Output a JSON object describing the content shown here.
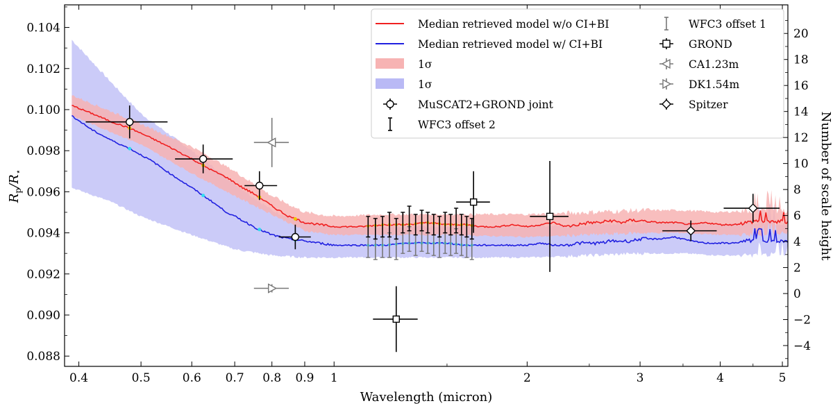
{
  "chart_data": {
    "type": "line",
    "xlabel": "Wavelength (micron)",
    "ylabel": "R_p/R_⋆",
    "ylabel_main": "R",
    "ylabel_sub": "p",
    "ylabel_mid": "/R",
    "ylabel_star": "⋆",
    "y2label": "Number of scale height",
    "xscale": "log",
    "xlim": [
      0.38,
      5.1
    ],
    "ylim": [
      0.0875,
      0.1051
    ],
    "y2lim": [
      -5.6,
      22.2
    ],
    "xticks": [
      0.4,
      0.5,
      0.6,
      0.7,
      0.8,
      0.9,
      1,
      2,
      3,
      4,
      5
    ],
    "xtick_labels": [
      "0.4",
      "0.5",
      "0.6",
      "0.7",
      "0.8",
      "0.9",
      "1",
      "2",
      "3",
      "4",
      "5"
    ],
    "yticks": [
      0.088,
      0.09,
      0.092,
      0.094,
      0.096,
      0.098,
      0.1,
      0.102,
      0.104
    ],
    "ytick_labels": [
      "0.088",
      "0.090",
      "0.092",
      "0.094",
      "0.096",
      "0.098",
      "0.100",
      "0.102",
      "0.104"
    ],
    "y2ticks": [
      -4,
      -2,
      0,
      2,
      4,
      6,
      8,
      10,
      12,
      14,
      16,
      18,
      20
    ],
    "y2tick_labels": [
      "−4",
      "−2",
      "0",
      "2",
      "4",
      "6",
      "8",
      "10",
      "12",
      "14",
      "16",
      "18",
      "20"
    ],
    "colors": {
      "model_no_ci": "#f02020",
      "model_ci": "#2020e0",
      "band_no_ci": "#f7b3b3",
      "band_ci": "#b9b9f5",
      "binned_no_ci": "#f0c800",
      "binned_ci": "#33ddee",
      "black": "#000000",
      "gray": "#777777"
    },
    "legend": {
      "col1": [
        {
          "label": "Median retrieved model w/o CI+BI"
        },
        {
          "label": "Median retrieved model w/ CI+BI"
        },
        {
          "label": "1σ"
        },
        {
          "label": "1σ"
        },
        {
          "label": "MuSCAT2+GROND joint"
        },
        {
          "label": "WFC3 offset 2"
        }
      ],
      "col2": [
        {
          "label": "WFC3 offset 1"
        },
        {
          "label": "GROND"
        },
        {
          "label": "CA1.23m"
        },
        {
          "label": "DK1.54m"
        },
        {
          "label": "Spitzer"
        }
      ]
    },
    "series": [
      {
        "name": "Median retrieved model w/o CI+BI",
        "x": [
          0.39,
          0.42,
          0.45,
          0.48,
          0.52,
          0.56,
          0.6,
          0.64,
          0.68,
          0.72,
          0.76,
          0.8,
          0.85,
          0.9,
          0.95,
          1.0,
          1.05,
          1.1,
          1.2,
          1.3,
          1.4,
          1.5,
          1.6,
          1.7,
          1.8,
          1.9,
          2.0,
          2.1,
          2.2,
          2.3,
          2.4,
          2.5,
          2.6,
          2.7,
          2.8,
          2.9,
          3.0,
          3.2,
          3.4,
          3.6,
          3.8,
          4.0,
          4.2,
          4.4,
          4.6,
          4.8,
          5.0,
          5.1
        ],
        "y": [
          0.1002,
          0.0998,
          0.0994,
          0.0991,
          0.0986,
          0.0981,
          0.0976,
          0.0971,
          0.0967,
          0.0962,
          0.0958,
          0.0953,
          0.0948,
          0.0945,
          0.0944,
          0.0943,
          0.0943,
          0.0943,
          0.0944,
          0.0944,
          0.0945,
          0.0944,
          0.0944,
          0.0943,
          0.0943,
          0.0944,
          0.0943,
          0.0944,
          0.0945,
          0.0943,
          0.0944,
          0.0945,
          0.0945,
          0.0946,
          0.0945,
          0.0946,
          0.0946,
          0.0945,
          0.0945,
          0.0944,
          0.0945,
          0.0944,
          0.0944,
          0.0945,
          0.0946,
          0.0945,
          0.0946,
          0.0945
        ]
      },
      {
        "name": "Median retrieved model w/ CI+BI",
        "x": [
          0.39,
          0.42,
          0.45,
          0.48,
          0.52,
          0.56,
          0.6,
          0.64,
          0.68,
          0.72,
          0.76,
          0.8,
          0.85,
          0.9,
          0.95,
          1.0,
          1.05,
          1.1,
          1.2,
          1.3,
          1.4,
          1.5,
          1.6,
          1.7,
          1.8,
          1.9,
          2.0,
          2.1,
          2.2,
          2.3,
          2.4,
          2.5,
          2.6,
          2.7,
          2.8,
          2.9,
          3.0,
          3.2,
          3.4,
          3.6,
          3.8,
          4.0,
          4.2,
          4.4,
          4.6,
          4.8,
          5.0,
          5.1
        ],
        "y": [
          0.0997,
          0.099,
          0.0985,
          0.0981,
          0.0975,
          0.0968,
          0.0962,
          0.0956,
          0.095,
          0.0946,
          0.0942,
          0.0939,
          0.0937,
          0.0936,
          0.0935,
          0.0934,
          0.0934,
          0.0934,
          0.0934,
          0.0935,
          0.0935,
          0.0935,
          0.0934,
          0.0934,
          0.0934,
          0.0934,
          0.0934,
          0.0935,
          0.0934,
          0.0934,
          0.0935,
          0.0935,
          0.0935,
          0.0936,
          0.0936,
          0.0936,
          0.0937,
          0.0937,
          0.0938,
          0.0936,
          0.0935,
          0.0935,
          0.0935,
          0.0936,
          0.0937,
          0.0936,
          0.0936,
          0.0936
        ]
      },
      {
        "name": "1σ (w/o CI+BI)",
        "x": [
          0.39,
          0.45,
          0.5,
          0.6,
          0.7,
          0.8,
          0.9,
          1.0,
          1.2,
          1.5,
          2.0,
          2.5,
          3.0,
          3.5,
          4.0,
          4.5,
          5.1
        ],
        "upper": [
          0.1007,
          0.0999,
          0.0993,
          0.0982,
          0.097,
          0.0958,
          0.095,
          0.0948,
          0.0949,
          0.0949,
          0.0949,
          0.095,
          0.0951,
          0.0951,
          0.095,
          0.0951,
          0.0951
        ],
        "lower": [
          0.0997,
          0.0989,
          0.0983,
          0.0969,
          0.0958,
          0.0949,
          0.0941,
          0.0939,
          0.0939,
          0.0939,
          0.0938,
          0.0939,
          0.094,
          0.094,
          0.0939,
          0.0939,
          0.094
        ]
      },
      {
        "name": "1σ (w/ CI+BI)",
        "x": [
          0.39,
          0.45,
          0.5,
          0.6,
          0.7,
          0.8,
          0.9,
          1.0,
          1.2,
          1.5,
          2.0,
          2.5,
          3.0,
          3.5,
          4.0,
          4.5,
          5.1
        ],
        "upper": [
          0.1034,
          0.1013,
          0.0998,
          0.098,
          0.0964,
          0.0951,
          0.0945,
          0.0943,
          0.0943,
          0.0943,
          0.0943,
          0.0944,
          0.0945,
          0.0945,
          0.0944,
          0.0945,
          0.0945
        ],
        "lower": [
          0.0962,
          0.0955,
          0.0948,
          0.0939,
          0.0932,
          0.0929,
          0.0928,
          0.0928,
          0.0928,
          0.0928,
          0.0928,
          0.0929,
          0.093,
          0.093,
          0.0929,
          0.0929,
          0.093
        ]
      }
    ],
    "data_points": {
      "muscat2_grond_joint": [
        {
          "x": 0.48,
          "y": 0.0994,
          "xerr": [
            0.07,
            0.07
          ],
          "yerr": 0.0008
        },
        {
          "x": 0.625,
          "y": 0.0976,
          "xerr": [
            0.06,
            0.07
          ],
          "yerr": 0.0007
        },
        {
          "x": 0.765,
          "y": 0.0963,
          "xerr": [
            0.04,
            0.05
          ],
          "yerr": 0.0007
        },
        {
          "x": 0.87,
          "y": 0.0938,
          "xerr": [
            0.05,
            0.05
          ],
          "yerr": 0.0006
        }
      ],
      "grond": [
        {
          "x": 1.25,
          "y": 0.0898,
          "xerr": [
            0.1,
            0.1
          ],
          "yerr": 0.0016
        },
        {
          "x": 1.65,
          "y": 0.0955,
          "xerr": [
            0.1,
            0.1
          ],
          "yerr": 0.0015
        },
        {
          "x": 2.17,
          "y": 0.0948,
          "xerr": [
            0.15,
            0.15
          ],
          "yerr": 0.0027
        }
      ],
      "ca123m": [
        {
          "x": 0.8,
          "y": 0.0984,
          "xerr": [
            0.05,
            0.05
          ],
          "yerr": 0.0012
        }
      ],
      "dk154m": [
        {
          "x": 0.8,
          "y": 0.0913,
          "xerr": [
            0.05,
            0.05
          ],
          "yerr": 0.0002
        }
      ],
      "spitzer": [
        {
          "x": 3.6,
          "y": 0.0941,
          "xerr": [
            0.35,
            0.35
          ],
          "yerr": 0.0005
        },
        {
          "x": 4.5,
          "y": 0.0952,
          "xerr": [
            0.45,
            0.45
          ],
          "yerr": 0.0007
        }
      ],
      "wfc3_offset2": {
        "x": [
          1.13,
          1.16,
          1.19,
          1.22,
          1.25,
          1.28,
          1.31,
          1.34,
          1.37,
          1.4,
          1.43,
          1.46,
          1.49,
          1.52,
          1.55,
          1.58,
          1.61,
          1.64
        ],
        "y": [
          0.0943,
          0.0942,
          0.0943,
          0.0944,
          0.0942,
          0.0945,
          0.0947,
          0.0944,
          0.0946,
          0.0945,
          0.0944,
          0.0943,
          0.0945,
          0.0944,
          0.0946,
          0.0944,
          0.0943,
          0.0942
        ],
        "yerr": [
          0.0005,
          0.0005,
          0.0005,
          0.0006,
          0.0005,
          0.0005,
          0.0006,
          0.0005,
          0.0005,
          0.0005,
          0.0005,
          0.0005,
          0.0005,
          0.0005,
          0.0006,
          0.0005,
          0.0005,
          0.0005
        ]
      },
      "wfc3_offset1": {
        "x": [
          1.13,
          1.16,
          1.19,
          1.22,
          1.25,
          1.28,
          1.31,
          1.34,
          1.37,
          1.4,
          1.43,
          1.46,
          1.49,
          1.52,
          1.55,
          1.58,
          1.61,
          1.64
        ],
        "y": [
          0.0933,
          0.0932,
          0.0933,
          0.0934,
          0.0932,
          0.0935,
          0.0937,
          0.0934,
          0.0936,
          0.0935,
          0.0934,
          0.0933,
          0.0935,
          0.0934,
          0.0936,
          0.0934,
          0.0933,
          0.0932
        ],
        "yerr": [
          0.0005,
          0.0005,
          0.0005,
          0.0006,
          0.0005,
          0.0005,
          0.0006,
          0.0005,
          0.0005,
          0.0005,
          0.0005,
          0.0005,
          0.0005,
          0.0005,
          0.0006,
          0.0005,
          0.0005,
          0.0005
        ]
      }
    }
  }
}
